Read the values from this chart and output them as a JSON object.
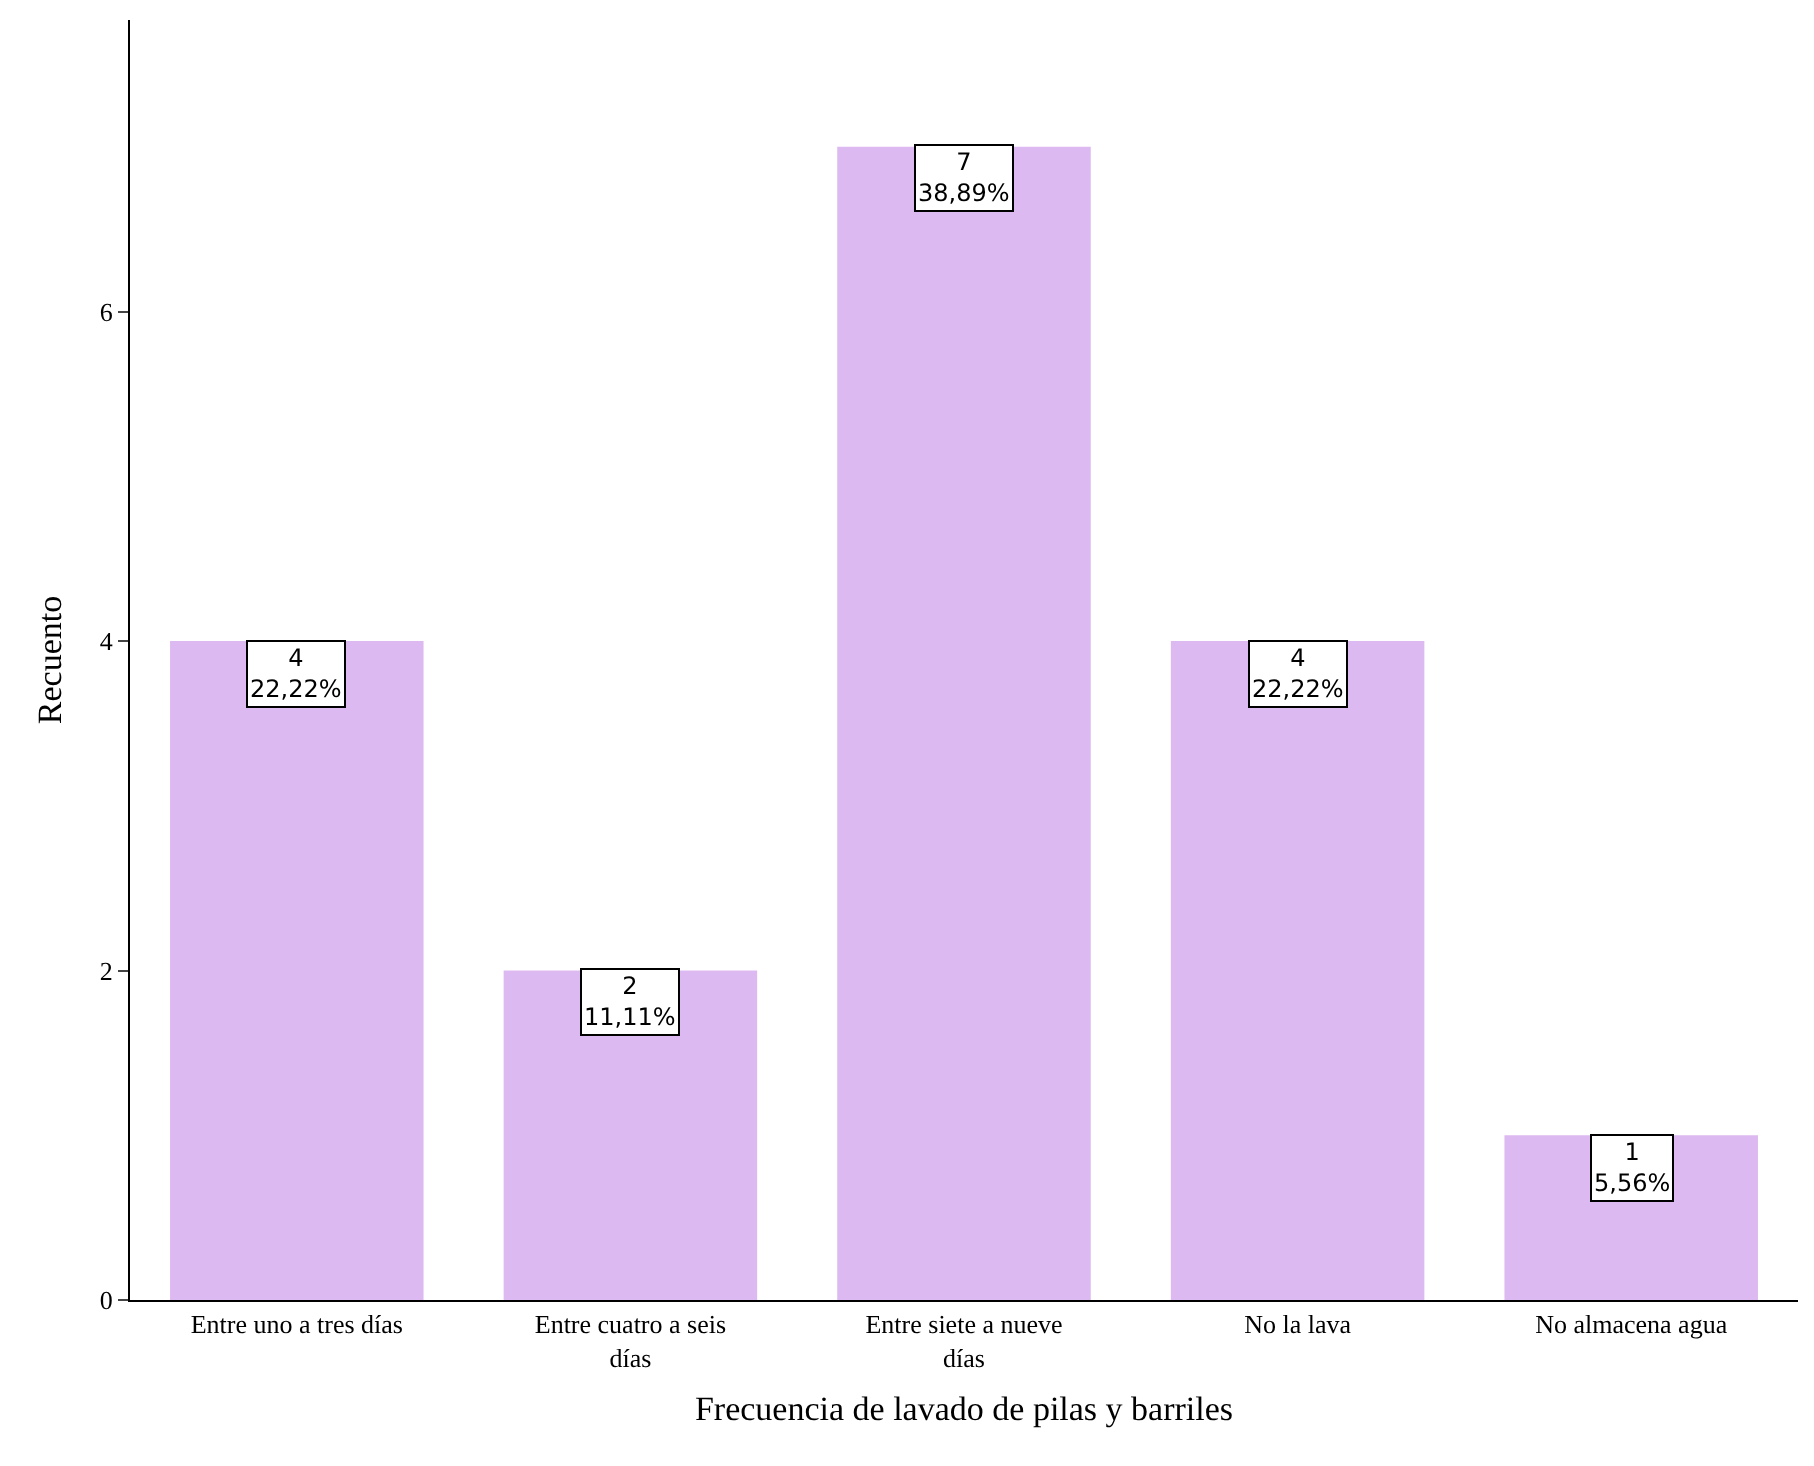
{
  "chart_data": {
    "type": "bar",
    "xlabel": "Frecuencia de lavado de pilas y barriles",
    "ylabel": "Recuento",
    "categories": [
      "Entre uno a tres días",
      "Entre cuatro a seis días",
      "Entre siete a nueve días",
      "No la lava",
      "No almacena agua"
    ],
    "values": [
      4,
      2,
      7,
      4,
      1
    ],
    "value_labels": [
      "4\n22,22%",
      "2\n11,11%",
      "7\n38,89%",
      "4\n22,22%",
      "1\n5,56%"
    ],
    "color": "#ddb9f1",
    "ylim": [
      0,
      7.77
    ],
    "yticks": [
      0,
      2,
      4,
      6
    ],
    "grid": false,
    "legend": false
  }
}
